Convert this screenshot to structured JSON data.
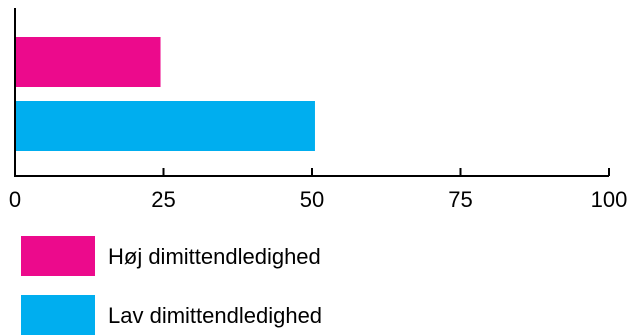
{
  "chart_data": {
    "type": "bar",
    "orientation": "horizontal",
    "title": "",
    "xlabel": "",
    "ylabel": "",
    "xlim": [
      0,
      100
    ],
    "xticks": [
      0,
      25,
      50,
      75,
      100
    ],
    "xtick_labels": [
      "0",
      "25",
      "50",
      "75",
      "100"
    ],
    "grid": false,
    "legend_position": "bottom-left",
    "series": [
      {
        "name": "Høj dimittendledighed",
        "value": 24.5,
        "color": "#EC0A8C"
      },
      {
        "name": "Lav dimittendledighed",
        "value": 50.5,
        "color": "#00AEEF"
      }
    ]
  }
}
